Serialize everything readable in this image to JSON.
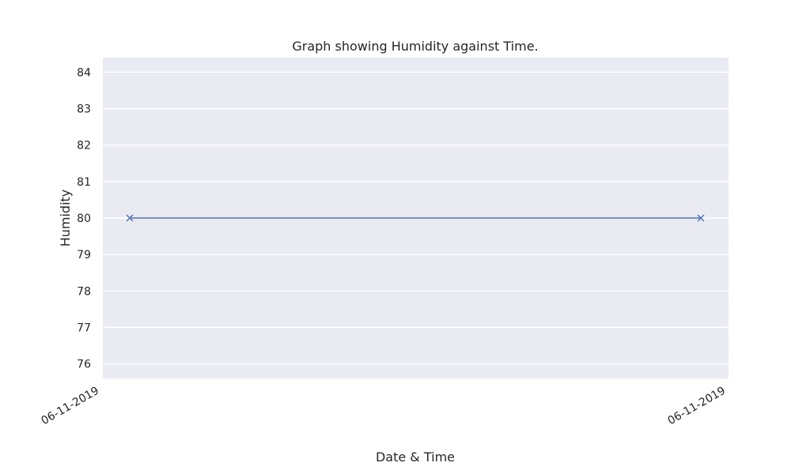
{
  "chart_data": {
    "type": "line",
    "title": "Graph showing Humidity against Time.",
    "xlabel": "Date & Time",
    "ylabel": "Humidity",
    "x_tick_labels": [
      "06-11-2019",
      "06-11-2019"
    ],
    "y_ticks": [
      76,
      77,
      78,
      79,
      80,
      81,
      82,
      83,
      84
    ],
    "ylim": [
      75.6,
      84.4
    ],
    "grid": true,
    "series": [
      {
        "marker": "x",
        "color": "#4c72b0",
        "values": [
          80,
          80
        ]
      }
    ],
    "colors": {
      "plot_background": "#eaeaf2",
      "grid": "#ffffff",
      "text": "#262626"
    }
  }
}
